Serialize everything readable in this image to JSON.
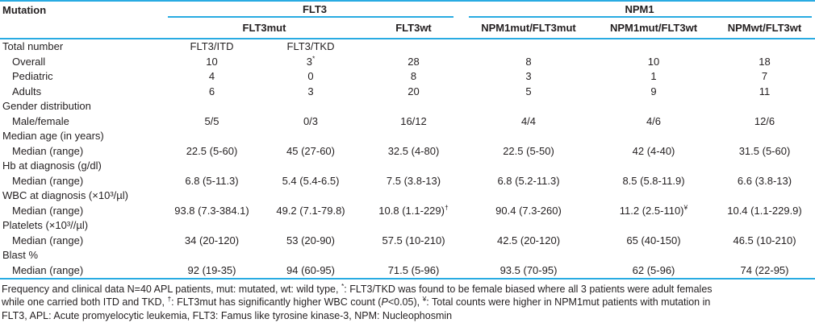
{
  "colors": {
    "accent": "#29abe2",
    "text": "#231f20"
  },
  "table": {
    "header": {
      "mutation": "Mutation",
      "groups": [
        {
          "label": "FLT3"
        },
        {
          "label": "NPM1"
        }
      ],
      "subheaders": [
        "FLT3mut",
        "FLT3wt",
        "NPM1mut/FLT3mut",
        "NPM1mut/FLT3wt",
        "NPMwt/FLT3wt"
      ]
    },
    "rows": [
      {
        "label": "Total number",
        "indent": false,
        "cells": [
          "FLT3/ITD",
          "FLT3/TKD",
          "",
          "",
          "",
          ""
        ]
      },
      {
        "label": "Overall",
        "indent": true,
        "cells": [
          "10",
          {
            "t": "3",
            "s": "*"
          },
          "28",
          "8",
          "10",
          "18"
        ]
      },
      {
        "label": "Pediatric",
        "indent": true,
        "cells": [
          "4",
          "0",
          "8",
          "3",
          "1",
          "7"
        ]
      },
      {
        "label": "Adults",
        "indent": true,
        "cells": [
          "6",
          "3",
          "20",
          "5",
          "9",
          "11"
        ]
      },
      {
        "label": "Gender distribution",
        "indent": false,
        "cells": [
          "",
          "",
          "",
          "",
          "",
          ""
        ]
      },
      {
        "label": "Male/female",
        "indent": true,
        "cells": [
          "5/5",
          "0/3",
          "16/12",
          "4/4",
          "4/6",
          "12/6"
        ]
      },
      {
        "label": "Median age (in years)",
        "indent": false,
        "cells": [
          "",
          "",
          "",
          "",
          "",
          ""
        ]
      },
      {
        "label": "Median (range)",
        "indent": true,
        "cells": [
          "22.5 (5-60)",
          "45 (27-60)",
          "32.5 (4-80)",
          "22.5 (5-50)",
          "42 (4-40)",
          "31.5 (5-60)"
        ]
      },
      {
        "label": "Hb at diagnosis (g/dl)",
        "indent": false,
        "cells": [
          "",
          "",
          "",
          "",
          "",
          ""
        ]
      },
      {
        "label": "Median (range)",
        "indent": true,
        "cells": [
          "6.8 (5-11.3)",
          "5.4 (5.4-6.5)",
          "7.5 (3.8-13)",
          "6.8 (5.2-11.3)",
          "8.5 (5.8-11.9)",
          "6.6 (3.8-13)"
        ]
      },
      {
        "label": "WBC at diagnosis (×10³/µl)",
        "indent": false,
        "cells": [
          "",
          "",
          "",
          "",
          "",
          ""
        ]
      },
      {
        "label": "Median (range)",
        "indent": true,
        "cells": [
          "93.8 (7.3-384.1)",
          "49.2 (7.1-79.8)",
          {
            "t": "10.8 (1.1-229)",
            "s": "†"
          },
          "90.4 (7.3-260)",
          {
            "t": "11.2 (2.5-110)",
            "s": "¥"
          },
          "10.4 (1.1-229.9)"
        ]
      },
      {
        "label": "Platelets (×10³//µl)",
        "indent": false,
        "cells": [
          "",
          "",
          "",
          "",
          "",
          ""
        ]
      },
      {
        "label": "Median (range)",
        "indent": true,
        "cells": [
          "34 (20-120)",
          "53 (20-90)",
          "57.5 (10-210)",
          "42.5 (20-120)",
          "65 (40-150)",
          "46.5 (10-210)"
        ]
      },
      {
        "label": "Blast %",
        "indent": false,
        "cells": [
          "",
          "",
          "",
          "",
          "",
          ""
        ]
      },
      {
        "label": "Median (range)",
        "indent": true,
        "cells": [
          "92 (19-35)",
          "94 (60-95)",
          "71.5 (5-96)",
          "93.5 (70-95)",
          "62 (5-96)",
          "74 (22-95)"
        ]
      }
    ]
  },
  "footnote": {
    "lines": [
      [
        {
          "t": "Frequency and clinical data N=40 APL patients, mut: mutated, wt: wild type, "
        },
        {
          "t": "*",
          "sup": true
        },
        {
          "t": ": FLT3/TKD was found to be female biased where all 3 patients were adult females"
        }
      ],
      [
        {
          "t": "while one carried both ITD and TKD, "
        },
        {
          "t": "†",
          "sup": true
        },
        {
          "t": ": FLT3mut has significantly higher WBC count ("
        },
        {
          "t": "P",
          "italic": true
        },
        {
          "t": "<0.05), "
        },
        {
          "t": "¥",
          "sup": true
        },
        {
          "t": ": Total counts were higher in NPM1mut patients with mutation in"
        }
      ],
      [
        {
          "t": "FLT3, APL: Acute promyelocytic leukemia, FLT3: Famus like tyrosine kinase-3, NPM: Nucleophosmin"
        }
      ]
    ]
  }
}
